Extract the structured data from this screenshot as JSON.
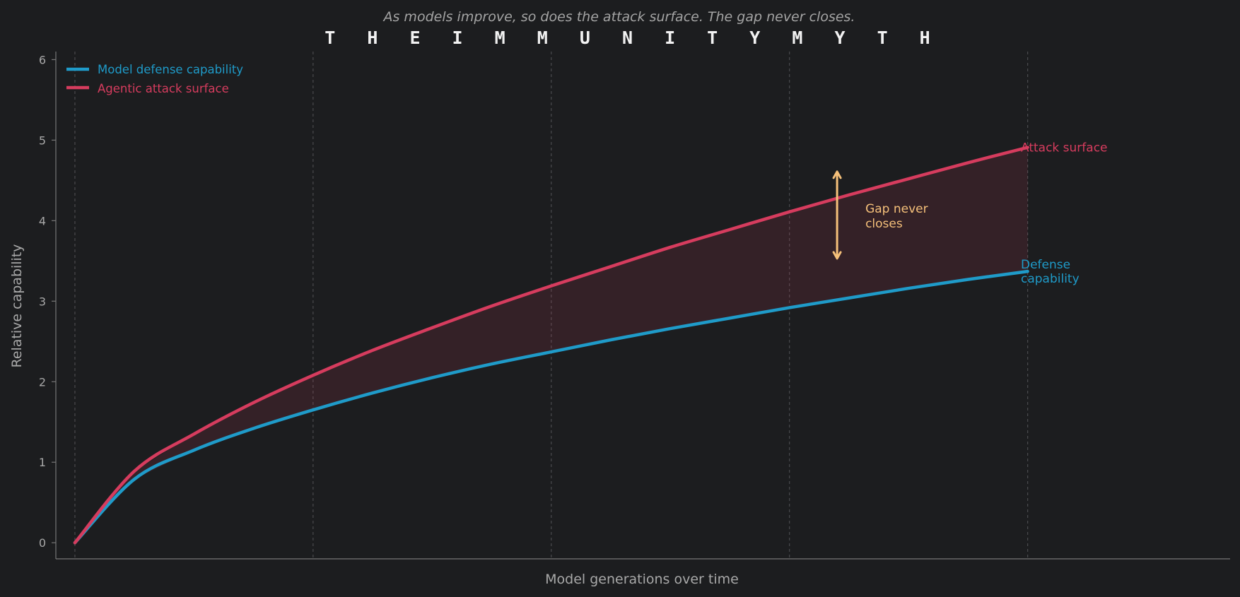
{
  "chart_data": {
    "type": "line",
    "title": "T H E   I M M U N I T Y   M Y T H",
    "subtitle": "As models improve, so does the attack surface. The gap never closes.",
    "xlabel": "Model generations over time",
    "ylabel": "Relative capability",
    "xlim": [
      -0.08,
      4.85
    ],
    "ylim": [
      -0.2,
      6.1
    ],
    "yticks": [
      0,
      1,
      2,
      3,
      4,
      5,
      6
    ],
    "xgrid_positions": [
      0,
      1,
      2,
      3,
      4
    ],
    "grid": "vertical-dashed",
    "legend_position": "top-left",
    "x": [
      0,
      0.25,
      0.5,
      0.75,
      1,
      1.25,
      1.5,
      1.75,
      2,
      2.25,
      2.5,
      2.75,
      3,
      3.25,
      3.5,
      3.75,
      4
    ],
    "series": [
      {
        "name": "Model defense capability",
        "end_label": "Defense capability",
        "color": "#1f9bc9",
        "values": [
          0,
          0.79,
          1.15,
          1.42,
          1.65,
          1.86,
          2.05,
          2.22,
          2.37,
          2.52,
          2.66,
          2.79,
          2.92,
          3.04,
          3.16,
          3.27,
          3.37
        ]
      },
      {
        "name": "Agentic attack surface",
        "end_label": "Attack surface",
        "color": "#d63c5e",
        "values": [
          0,
          0.89,
          1.35,
          1.74,
          2.08,
          2.39,
          2.67,
          2.94,
          3.19,
          3.43,
          3.67,
          3.89,
          4.11,
          4.32,
          4.52,
          4.72,
          4.91
        ]
      }
    ],
    "annotation": {
      "text_line1": "Gap never",
      "text_line2": "closes",
      "x": 3.2,
      "y_top": 4.61,
      "y_bottom": 3.53,
      "color": "#f5c07a"
    },
    "fill_between_color": "#d63c5e"
  }
}
